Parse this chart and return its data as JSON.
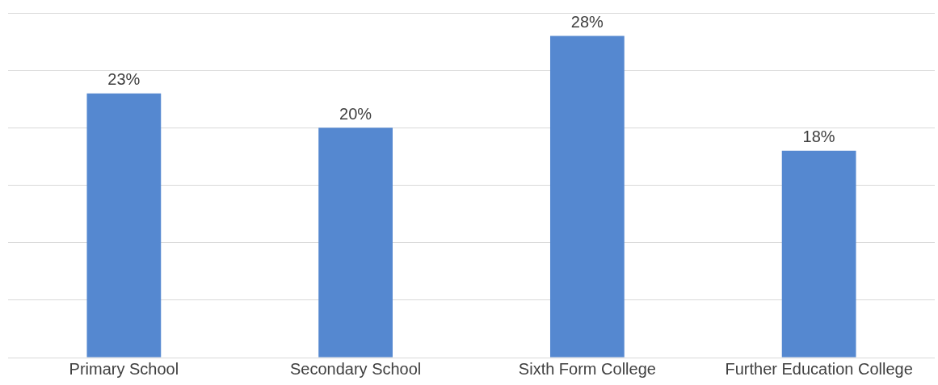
{
  "chart_data": {
    "type": "bar",
    "categories": [
      "Primary School",
      "Secondary School",
      "Sixth Form College",
      "Further Education College"
    ],
    "values": [
      23,
      20,
      28,
      18
    ],
    "color": "#5588d0",
    "value_labels": [
      "23%",
      "20%",
      "28%",
      "18%"
    ],
    "ylim": [
      0,
      30
    ],
    "yticks": [
      {
        "value": 0,
        "label": null
      },
      {
        "value": 5,
        "label": null
      },
      {
        "value": 10,
        "label": null
      },
      {
        "value": 15,
        "label": null
      },
      {
        "value": 20,
        "label": null
      },
      {
        "value": 25,
        "label": null
      },
      {
        "value": 30,
        "label": null
      }
    ],
    "grid": "y",
    "tick_labels": "x",
    "legend": false
  }
}
